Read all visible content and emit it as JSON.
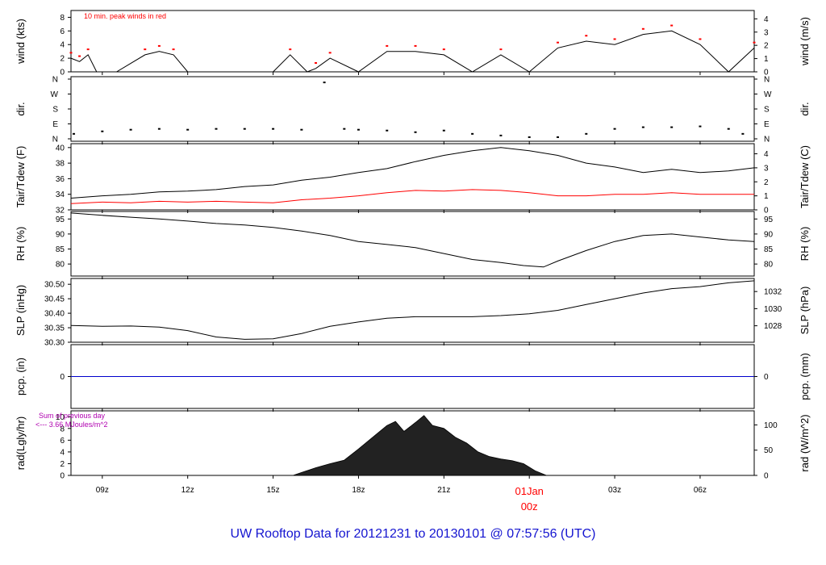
{
  "title": "UW Rooftop Data for 20121231  to  20130101 @ 07:57:56  (UTC)",
  "colors": {
    "axis": "#000000",
    "primary": "#000000",
    "dewpoint": "#ff0000",
    "peak": "#ff0000",
    "precip": "#0000cc",
    "title": "#1515d0",
    "note": "#b000b0",
    "date_marker": "#ff0000"
  },
  "x_axis": {
    "start_hour_utc": 7.9,
    "end_hour_utc": 31.9,
    "tick_hours": [
      9,
      12,
      15,
      18,
      21,
      24,
      27,
      30
    ],
    "tick_labels": [
      "09z",
      "12z",
      "15z",
      "18z",
      "21z",
      "01Jan",
      "03z",
      "06z"
    ],
    "date_marker_label": "01Jan",
    "date_marker_sublabel": "00z"
  },
  "chart_data": [
    {
      "type": "line",
      "ylabel": "wind (kts)",
      "ylabel_right": "wind (m/s)",
      "ylim": [
        0,
        9
      ],
      "yticks": [
        0,
        2,
        4,
        6,
        8
      ],
      "yticks_right": [
        0,
        1,
        2,
        3,
        4
      ],
      "annotation": "10 min. peak winds in red",
      "series": [
        {
          "name": "wind",
          "x": [
            7.9,
            8.2,
            8.5,
            8.8,
            9.5,
            10.5,
            11.0,
            11.5,
            12.0,
            13.0,
            14.0,
            15.0,
            15.6,
            16.2,
            16.5,
            17.0,
            18.0,
            19.0,
            20.0,
            21.0,
            22.0,
            23.0,
            24.0,
            25.0,
            26.0,
            27.0,
            28.0,
            29.0,
            30.0,
            31.0,
            31.9
          ],
          "y": [
            2.0,
            1.5,
            2.5,
            0,
            0,
            2.5,
            3.0,
            2.5,
            0,
            0,
            0,
            0,
            2.5,
            0,
            0.5,
            2.0,
            0,
            3.0,
            3.0,
            2.5,
            0,
            2.5,
            0,
            3.5,
            4.5,
            4.0,
            5.5,
            6.0,
            4.0,
            0,
            3.5
          ]
        }
      ]
    },
    {
      "type": "scatter",
      "ylabel": "dir.",
      "ylabel_right": "dir.",
      "yticks_labels": [
        "N",
        "E",
        "S",
        "W",
        "N"
      ],
      "yticks_degrees": [
        0,
        90,
        180,
        270,
        360
      ],
      "series": [
        {
          "name": "direction",
          "x": [
            8.0,
            9.0,
            10.0,
            11.0,
            12.0,
            13.0,
            14.0,
            15.0,
            16.0,
            16.8,
            17.5,
            18.0,
            19.0,
            20.0,
            21.0,
            22.0,
            23.0,
            24.0,
            25.0,
            26.0,
            27.0,
            28.0,
            29.0,
            30.0,
            31.0,
            31.5
          ],
          "y": [
            30,
            45,
            55,
            60,
            55,
            60,
            60,
            60,
            55,
            340,
            60,
            55,
            50,
            40,
            50,
            30,
            20,
            10,
            10,
            30,
            60,
            70,
            70,
            75,
            60,
            30
          ]
        }
      ]
    },
    {
      "type": "line",
      "ylabel": "Tair/Tdew (F)",
      "ylabel_right": "Tair/Tdew (C)",
      "ylim": [
        32,
        40.5
      ],
      "yticks": [
        32,
        34,
        36,
        38,
        40
      ],
      "yticks_right": [
        0,
        1,
        2,
        3,
        4
      ],
      "series": [
        {
          "name": "Tair",
          "x": [
            7.9,
            9.0,
            10.0,
            11.0,
            12.0,
            13.0,
            14.0,
            15.0,
            16.0,
            17.0,
            18.0,
            19.0,
            20.0,
            21.0,
            22.0,
            23.0,
            24.0,
            25.0,
            26.0,
            27.0,
            28.0,
            29.0,
            30.0,
            31.0,
            31.9
          ],
          "y": [
            33.5,
            33.8,
            34.0,
            34.3,
            34.4,
            34.6,
            35.0,
            35.2,
            35.8,
            36.2,
            36.8,
            37.3,
            38.2,
            39.0,
            39.6,
            40.0,
            39.6,
            39.0,
            38.0,
            37.5,
            36.8,
            37.2,
            36.8,
            37.0,
            37.4
          ]
        },
        {
          "name": "Tdew",
          "x": [
            7.9,
            9.0,
            10.0,
            11.0,
            12.0,
            13.0,
            14.0,
            15.0,
            16.0,
            17.0,
            18.0,
            19.0,
            20.0,
            21.0,
            22.0,
            23.0,
            24.0,
            25.0,
            26.0,
            27.0,
            28.0,
            29.0,
            30.0,
            31.0,
            31.9
          ],
          "y": [
            32.8,
            33.0,
            32.9,
            33.1,
            33.0,
            33.1,
            33.0,
            32.9,
            33.3,
            33.5,
            33.8,
            34.2,
            34.5,
            34.4,
            34.6,
            34.5,
            34.2,
            33.8,
            33.8,
            34.0,
            34.0,
            34.2,
            34.0,
            34.0,
            34.0
          ]
        }
      ]
    },
    {
      "type": "line",
      "ylabel": "RH (%)",
      "ylabel_right": "RH (%)",
      "ylim": [
        76,
        97.5
      ],
      "yticks": [
        80,
        85,
        90,
        95
      ],
      "series": [
        {
          "name": "RH",
          "x": [
            7.9,
            9.0,
            10.0,
            11.0,
            12.0,
            13.0,
            14.0,
            15.0,
            16.0,
            17.0,
            18.0,
            19.0,
            20.0,
            21.0,
            22.0,
            23.0,
            23.8,
            24.5,
            25.0,
            26.0,
            27.0,
            28.0,
            29.0,
            30.0,
            31.0,
            31.9
          ],
          "y": [
            97.0,
            96.2,
            95.6,
            95.0,
            94.3,
            93.5,
            93.0,
            92.2,
            91.0,
            89.5,
            87.5,
            86.5,
            85.5,
            83.5,
            81.5,
            80.5,
            79.5,
            79.0,
            81.0,
            84.5,
            87.5,
            89.5,
            90.0,
            89.0,
            88.0,
            87.5
          ]
        }
      ]
    },
    {
      "type": "line",
      "ylabel": "SLP (inHg)",
      "ylabel_right": "SLP (hPa)",
      "ylim": [
        30.3,
        30.52
      ],
      "yticks": [
        30.3,
        30.35,
        30.4,
        30.45,
        30.5
      ],
      "yticks_right_labels": [
        "1028",
        "1030",
        "1032"
      ],
      "series": [
        {
          "name": "SLP",
          "x": [
            7.9,
            9.0,
            10.0,
            11.0,
            12.0,
            13.0,
            14.0,
            15.0,
            16.0,
            17.0,
            18.0,
            19.0,
            20.0,
            21.0,
            22.0,
            23.0,
            24.0,
            25.0,
            26.0,
            27.0,
            28.0,
            29.0,
            30.0,
            31.0,
            31.9
          ],
          "y": [
            30.358,
            30.355,
            30.356,
            30.352,
            30.34,
            30.318,
            30.31,
            30.312,
            30.33,
            30.355,
            30.37,
            30.383,
            30.388,
            30.388,
            30.388,
            30.392,
            30.398,
            30.41,
            30.43,
            30.45,
            30.47,
            30.485,
            30.492,
            30.505,
            30.512
          ]
        }
      ]
    },
    {
      "type": "line",
      "ylabel": "pcp. (in)",
      "ylabel_right": "pcp. (mm)",
      "yticks": [
        0
      ],
      "yticks_right": [
        0
      ],
      "series": [
        {
          "name": "pcp",
          "x": [
            7.9,
            31.9
          ],
          "y": [
            0,
            0
          ]
        }
      ]
    },
    {
      "type": "area",
      "ylabel": "rad(Lgly/hr)",
      "ylabel_right": "rad (W/m^2)",
      "ylim": [
        0,
        11
      ],
      "yticks": [
        0,
        2,
        4,
        6,
        8,
        10
      ],
      "yticks_right": [
        0,
        50,
        100
      ],
      "note_line1": "Sum of previous day",
      "note_line2": "<--- 3.66 MJoules/m^2",
      "series": [
        {
          "name": "rad",
          "x": [
            15.7,
            16.0,
            16.5,
            17.0,
            17.5,
            18.0,
            18.5,
            19.0,
            19.3,
            19.6,
            20.0,
            20.3,
            20.6,
            21.0,
            21.4,
            21.8,
            22.2,
            22.6,
            23.0,
            23.4,
            23.8,
            24.2,
            24.6
          ],
          "y": [
            0,
            0.5,
            1.3,
            2.0,
            2.6,
            4.5,
            6.5,
            8.5,
            9.2,
            7.5,
            9.0,
            10.2,
            8.5,
            8.0,
            6.5,
            5.5,
            4.0,
            3.2,
            2.8,
            2.5,
            2.0,
            0.8,
            0
          ]
        }
      ]
    }
  ]
}
